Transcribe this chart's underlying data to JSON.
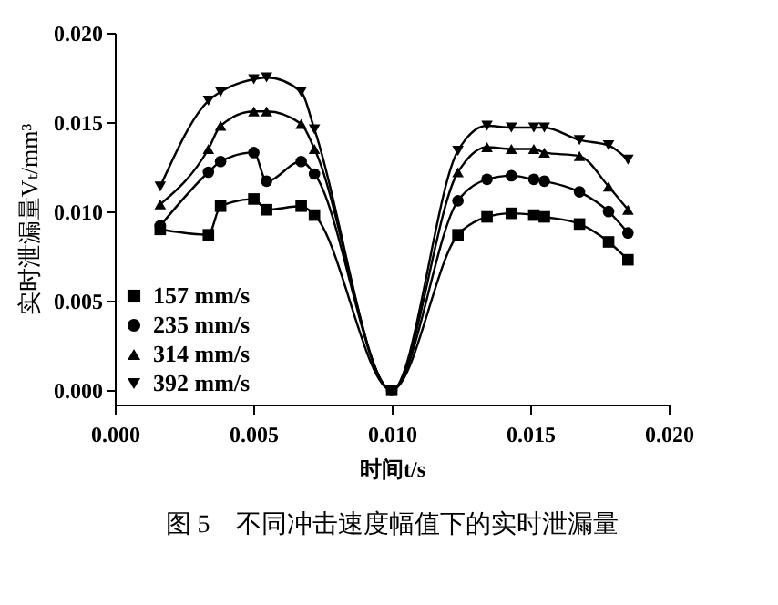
{
  "chart_data": {
    "type": "line",
    "xlabel": "时间t/s",
    "ylabel": "实时泄漏量Vₜ/mm³",
    "annotations": [
      "图 5　不同冲击速度幅值下的实时泄漏量"
    ],
    "x": [
      0.00164,
      0.00338,
      0.00382,
      0.00502,
      0.00548,
      0.00673,
      0.00721,
      0.01,
      0.01239,
      0.01344,
      0.01432,
      0.01513,
      0.01551,
      0.01678,
      0.01783,
      0.01853
    ],
    "xlim": [
      0,
      0.02
    ],
    "xticks": [
      {
        "value": 0,
        "label": "0.000"
      },
      {
        "value": 0.005,
        "label": "0.005"
      },
      {
        "value": 0.01,
        "label": "0.010"
      },
      {
        "value": 0.015,
        "label": "0.015"
      },
      {
        "value": 0.02,
        "label": "0.020"
      }
    ],
    "ylim": [
      -0.0008,
      0.02
    ],
    "yticks": [
      {
        "value": 0,
        "label": "0.000"
      },
      {
        "value": 0.005,
        "label": "0.005"
      },
      {
        "value": 0.01,
        "label": "0.010"
      },
      {
        "value": 0.015,
        "label": "0.015"
      },
      {
        "value": 0.02,
        "label": "0.020"
      }
    ],
    "grid": false,
    "legend": "bottom left",
    "series": [
      {
        "name": "157 mm/s",
        "color": "#000000",
        "marker": "square",
        "values": [
          0.009,
          0.0087,
          0.0103,
          0.0107,
          0.0101,
          0.0103,
          0.0098,
          0.0,
          0.0087,
          0.0097,
          0.0099,
          0.0098,
          0.0097,
          0.0093,
          0.0083,
          0.0073
        ]
      },
      {
        "name": "235 mm/s",
        "color": "#000000",
        "marker": "circle",
        "values": [
          0.0092,
          0.0122,
          0.0128,
          0.0133,
          0.0117,
          0.0128,
          0.0121,
          0.0,
          0.0106,
          0.0118,
          0.012,
          0.0118,
          0.0117,
          0.0111,
          0.01,
          0.0088
        ]
      },
      {
        "name": "314 mm/s",
        "color": "#000000",
        "marker": "triangle",
        "values": [
          0.0104,
          0.0135,
          0.0148,
          0.0156,
          0.0156,
          0.0149,
          0.0135,
          0.0,
          0.0122,
          0.0136,
          0.0135,
          0.0135,
          0.0133,
          0.0131,
          0.0114,
          0.0101
        ]
      },
      {
        "name": "392 mm/s",
        "color": "#000000",
        "marker": "triangle-down",
        "values": [
          0.0114,
          0.0162,
          0.0167,
          0.0174,
          0.0175,
          0.0167,
          0.0146,
          0.0,
          0.0134,
          0.0148,
          0.0147,
          0.0147,
          0.0147,
          0.014,
          0.0137,
          0.0129
        ]
      }
    ]
  }
}
